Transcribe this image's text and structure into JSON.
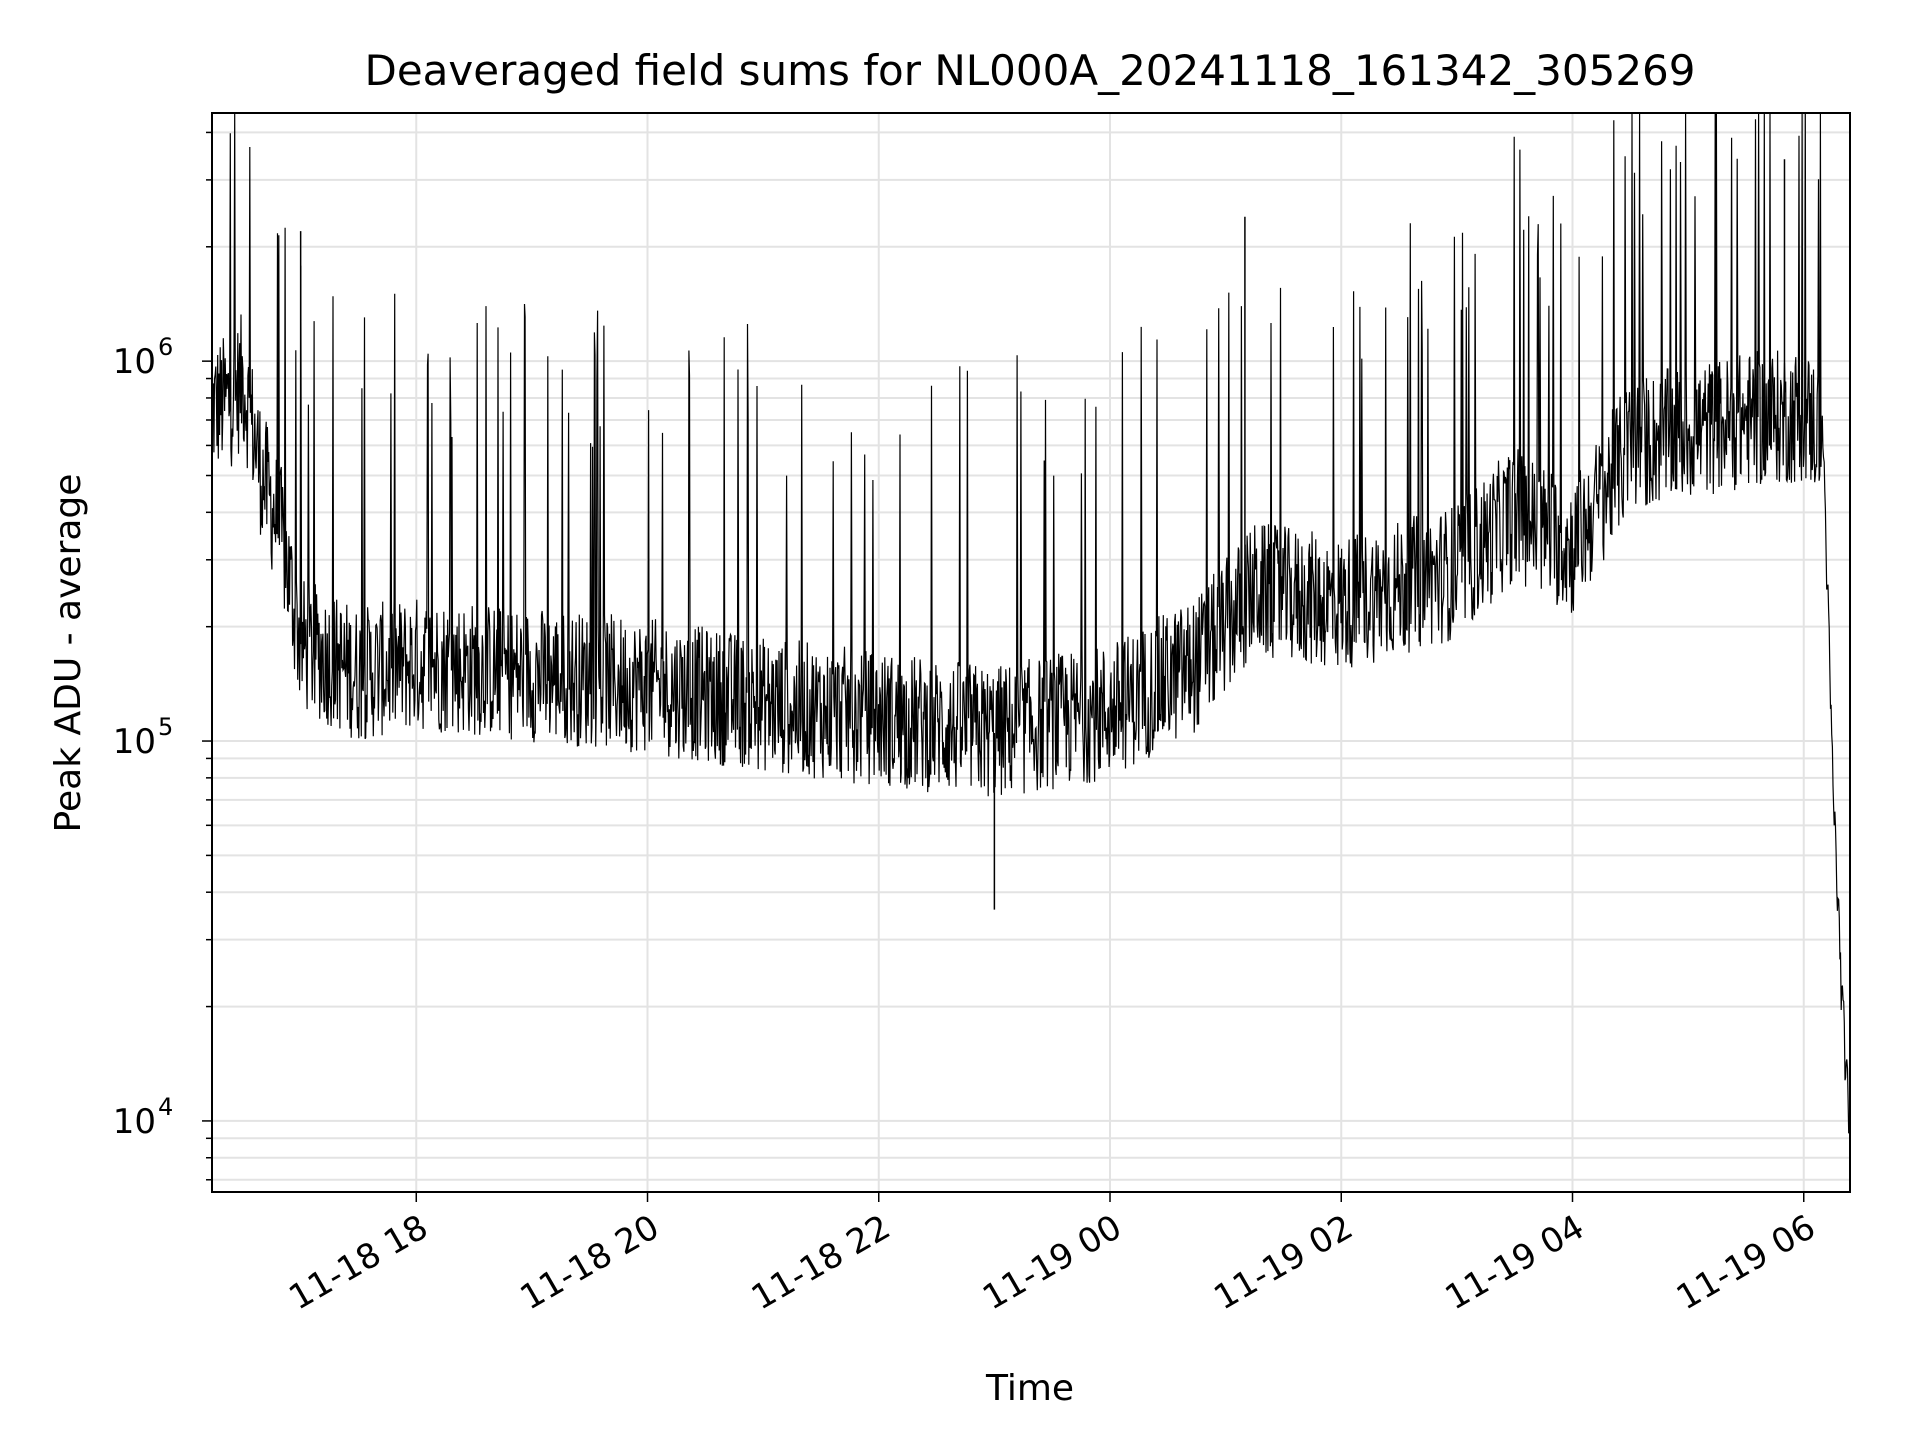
{
  "chart_data": {
    "type": "line",
    "title": "Deaveraged field sums for NL000A_20241118_161342_305269",
    "xlabel": "Time",
    "ylabel": "Peak ADU - average",
    "yscale": "log",
    "ylim": [
      6500,
      4500000
    ],
    "xlim": [
      "2024-11-18 16:14",
      "2024-11-19 06:24"
    ],
    "grid": true,
    "legend": "none",
    "line_color": "#000000",
    "x_ticks": [
      "2024-11-18 18:00",
      "2024-11-18 20:00",
      "2024-11-18 22:00",
      "2024-11-19 00:00",
      "2024-11-19 02:00",
      "2024-11-19 04:00",
      "2024-11-19 06:00"
    ],
    "x_tick_labels": [
      "11-18 18",
      "11-18 20",
      "11-18 22",
      "11-19 00",
      "11-19 02",
      "11-19 04",
      "11-19 06"
    ],
    "y_ticks": [
      10000,
      100000,
      1000000
    ],
    "y_tick_labels": [
      {
        "base": "10",
        "exp": "4"
      },
      {
        "base": "10",
        "exp": "5"
      },
      {
        "base": "10",
        "exp": "6"
      }
    ],
    "series": [
      {
        "x": [
          "2024-11-18 16:14",
          "2024-11-18 16:25",
          "2024-11-18 16:30",
          "2024-11-18 16:40",
          "2024-11-18 16:50",
          "2024-11-18 17:00",
          "2024-11-18 17:30",
          "2024-11-18 18:00",
          "2024-11-18 19:00",
          "2024-11-18 20:00",
          "2024-11-18 21:00",
          "2024-11-18 22:00",
          "2024-11-18 23:00",
          "2024-11-19 00:00",
          "2024-11-19 00:45",
          "2024-11-19 01:15",
          "2024-11-19 02:00",
          "2024-11-19 03:00",
          "2024-11-19 03:30",
          "2024-11-19 04:00",
          "2024-11-19 04:30",
          "2024-11-19 05:00",
          "2024-11-19 05:30",
          "2024-11-19 06:00",
          "2024-11-19 06:10",
          "2024-11-19 06:15",
          "2024-11-19 06:20",
          "2024-11-19 06:24"
        ],
        "y": [
          750000,
          800000,
          900000,
          500000,
          350000,
          180000,
          150000,
          160000,
          150000,
          140000,
          125000,
          115000,
          105000,
          120000,
          160000,
          250000,
          230000,
          280000,
          400000,
          320000,
          600000,
          650000,
          700000,
          720000,
          650000,
          80000,
          20000,
          9000
        ]
      }
    ],
    "notable_values": [
      {
        "x": "2024-11-18 17:00",
        "y": 2200000
      },
      {
        "x": "2024-11-19 01:10",
        "y": 2400000
      },
      {
        "x": "2024-11-19 05:50",
        "y": 3400000
      },
      {
        "x": "2024-11-18 23:00",
        "y": 36000
      },
      {
        "x": "2024-11-19 06:24",
        "y": 9000
      }
    ]
  }
}
